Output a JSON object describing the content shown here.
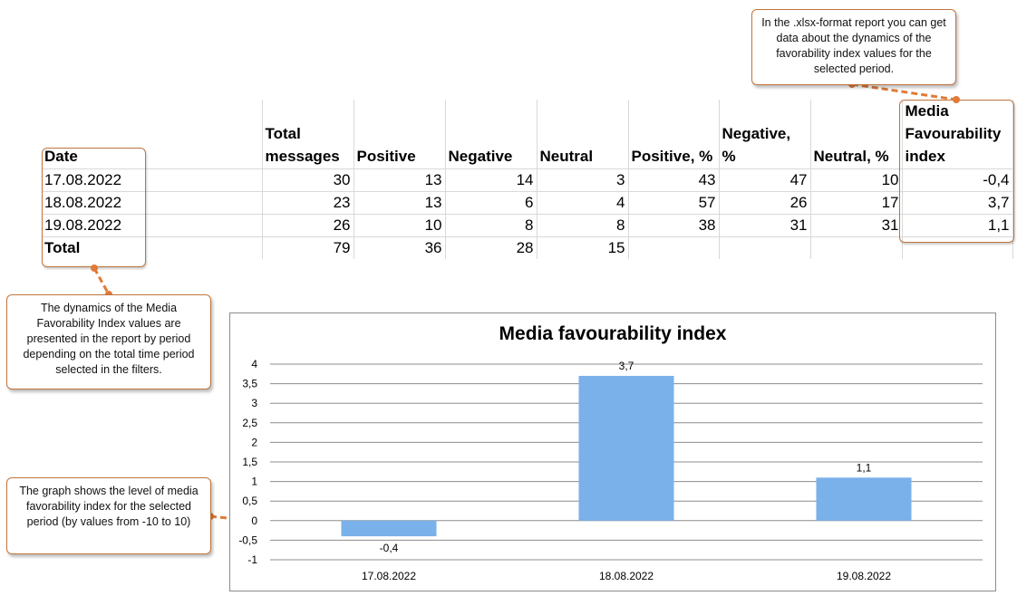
{
  "table": {
    "headers": [
      "Date",
      "Total messages",
      "Positive",
      "Negative",
      "Neutral",
      "Positive, %",
      "Negative, %",
      "Neutral, %",
      "Media Favourability index"
    ],
    "rows": [
      [
        "17.08.2022",
        "30",
        "13",
        "14",
        "3",
        "43",
        "47",
        "10",
        "-0,4"
      ],
      [
        "18.08.2022",
        "23",
        "13",
        "6",
        "4",
        "57",
        "26",
        "17",
        "3,7"
      ],
      [
        "19.08.2022",
        "26",
        "10",
        "8",
        "8",
        "38",
        "31",
        "31",
        "1,1"
      ]
    ],
    "total_row": [
      "Total",
      "79",
      "36",
      "28",
      "15",
      "",
      "",
      "",
      ""
    ]
  },
  "callouts": {
    "xlsx_report": "In the .xlsx-format report you can get data about the dynamics of the favorability index values for the selected period.",
    "dynamics": "The dynamics of the Media Favorability Index values are presented in the report by period depending on the total time period selected in the filters.",
    "graph_level": "The graph shows the level of media favorability index for the selected period (by values from -10 to 10)"
  },
  "colors": {
    "bar": "#7ab1ea",
    "callout_border": "#c0743d",
    "connector": "#e07b39"
  },
  "chart_data": {
    "type": "bar",
    "title": "Media favourability index",
    "categories": [
      "17.08.2022",
      "18.08.2022",
      "19.08.2022"
    ],
    "values": [
      -0.4,
      3.7,
      1.1
    ],
    "data_labels": [
      "-0,4",
      "3,7",
      "1,1"
    ],
    "ylim": [
      -1,
      4
    ],
    "ytick_step": 0.5,
    "ytick_labels": [
      "-1",
      "-0,5",
      "0",
      "0,5",
      "1",
      "1,5",
      "2",
      "2,5",
      "3",
      "3,5",
      "4"
    ],
    "grid": true,
    "legend": "none",
    "xlabel": "",
    "ylabel": ""
  }
}
